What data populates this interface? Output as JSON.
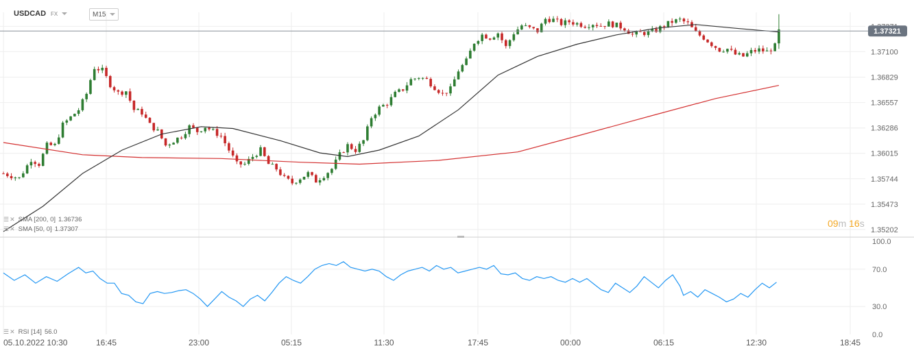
{
  "header": {
    "symbol": "USDCAD",
    "market": "FX",
    "timeframe": "M15"
  },
  "indicators": {
    "sma200": {
      "label": "SMA [200, 0]",
      "value": "1.36736",
      "color": "#d32f2f"
    },
    "sma50": {
      "label": "SMA [50, 0]",
      "value": "1.37307",
      "color": "#333333"
    },
    "rsi": {
      "label": "RSI [14]",
      "value": "56.0",
      "color": "#2196f3"
    }
  },
  "price_label": {
    "value": "1.37321",
    "color": "#6b7480"
  },
  "timer": {
    "minutes": "09",
    "m": "m",
    "seconds": "16",
    "s": "s"
  },
  "colors": {
    "bull": "#2e7d32",
    "bear": "#c62828",
    "grid": "#eeeeee"
  },
  "chart_data": {
    "type": "candlestick",
    "symbol": "USDCAD",
    "interval": "M15",
    "price_axis_ticks": [
      "1.37371",
      "1.37100",
      "1.36829",
      "1.36557",
      "1.36286",
      "1.36015",
      "1.35744",
      "1.35473",
      "1.35202"
    ],
    "rsi_axis_ticks": [
      "100.0",
      "70.0",
      "30.0",
      "0.0"
    ],
    "time_axis_ticks": [
      "05.10.2022 10:30",
      "16:45",
      "23:00",
      "05:15",
      "11:30",
      "17:45",
      "00:00",
      "06:15",
      "12:30",
      "18:45"
    ],
    "ylim": [
      1.3515,
      1.3752
    ],
    "rsi_ylim": [
      0,
      100
    ],
    "current_price": 1.37321,
    "close_path": [
      [
        0,
        1.358
      ],
      [
        4,
        1.3575
      ],
      [
        7,
        1.3595
      ],
      [
        9,
        1.359
      ],
      [
        11,
        1.361
      ],
      [
        13,
        1.361
      ],
      [
        15,
        1.3632
      ],
      [
        17,
        1.364
      ],
      [
        19,
        1.3648
      ],
      [
        21,
        1.3665
      ],
      [
        22,
        1.368
      ],
      [
        23,
        1.3693
      ],
      [
        25,
        1.369
      ],
      [
        27,
        1.3675
      ],
      [
        29,
        1.3666
      ],
      [
        31,
        1.3668
      ],
      [
        33,
        1.3648
      ],
      [
        35,
        1.3645
      ],
      [
        37,
        1.3632
      ],
      [
        39,
        1.3625
      ],
      [
        41,
        1.361
      ],
      [
        43,
        1.3615
      ],
      [
        45,
        1.362
      ],
      [
        47,
        1.363
      ],
      [
        49,
        1.3625
      ],
      [
        51,
        1.363
      ],
      [
        53,
        1.3625
      ],
      [
        55,
        1.362
      ],
      [
        57,
        1.3605
      ],
      [
        59,
        1.359
      ],
      [
        61,
        1.359
      ],
      [
        63,
        1.3598
      ],
      [
        65,
        1.3605
      ],
      [
        67,
        1.359
      ],
      [
        69,
        1.3585
      ],
      [
        71,
        1.3575
      ],
      [
        73,
        1.357
      ],
      [
        75,
        1.3575
      ],
      [
        77,
        1.358
      ],
      [
        79,
        1.3572
      ],
      [
        81,
        1.3578
      ],
      [
        83,
        1.3585
      ],
      [
        85,
        1.36
      ],
      [
        87,
        1.361
      ],
      [
        89,
        1.3605
      ],
      [
        91,
        1.3615
      ],
      [
        93,
        1.364
      ],
      [
        95,
        1.365
      ],
      [
        97,
        1.3655
      ],
      [
        99,
        1.3665
      ],
      [
        101,
        1.367
      ],
      [
        103,
        1.368
      ],
      [
        105,
        1.3683
      ],
      [
        107,
        1.368
      ],
      [
        109,
        1.3672
      ],
      [
        111,
        1.3665
      ],
      [
        113,
        1.367
      ],
      [
        115,
        1.369
      ],
      [
        117,
        1.37
      ],
      [
        119,
        1.372
      ],
      [
        121,
        1.3728
      ],
      [
        123,
        1.3725
      ],
      [
        125,
        1.373
      ],
      [
        127,
        1.3715
      ],
      [
        129,
        1.373
      ],
      [
        131,
        1.3738
      ],
      [
        133,
        1.3735
      ],
      [
        135,
        1.3732
      ],
      [
        137,
        1.3745
      ],
      [
        139,
        1.3744
      ],
      [
        141,
        1.374
      ],
      [
        143,
        1.3742
      ],
      [
        145,
        1.374
      ],
      [
        147,
        1.3738
      ],
      [
        149,
        1.374
      ],
      [
        151,
        1.3738
      ],
      [
        153,
        1.374
      ],
      [
        155,
        1.3738
      ],
      [
        157,
        1.3735
      ],
      [
        159,
        1.3728
      ],
      [
        161,
        1.373
      ],
      [
        163,
        1.373
      ],
      [
        165,
        1.3733
      ],
      [
        167,
        1.3738
      ],
      [
        169,
        1.3742
      ],
      [
        171,
        1.3744
      ],
      [
        173,
        1.374
      ],
      [
        175,
        1.373
      ],
      [
        177,
        1.3725
      ],
      [
        179,
        1.3718
      ],
      [
        181,
        1.3712
      ],
      [
        183,
        1.3713
      ],
      [
        185,
        1.3707
      ],
      [
        187,
        1.3705
      ],
      [
        189,
        1.371
      ],
      [
        191,
        1.3712
      ],
      [
        193,
        1.371
      ],
      [
        195,
        1.3716
      ],
      [
        196,
        1.3732
      ]
    ],
    "sma200_path": [
      [
        0,
        1.3613
      ],
      [
        20,
        1.36
      ],
      [
        35,
        1.3597
      ],
      [
        55,
        1.3596
      ],
      [
        75,
        1.3592
      ],
      [
        90,
        1.359
      ],
      [
        110,
        1.3594
      ],
      [
        130,
        1.3603
      ],
      [
        145,
        1.362
      ],
      [
        165,
        1.3643
      ],
      [
        180,
        1.366
      ],
      [
        196,
        1.3674
      ]
    ],
    "sma50_path": [
      [
        0,
        1.3518
      ],
      [
        10,
        1.3545
      ],
      [
        20,
        1.358
      ],
      [
        30,
        1.3605
      ],
      [
        40,
        1.3622
      ],
      [
        50,
        1.363
      ],
      [
        58,
        1.3628
      ],
      [
        70,
        1.3615
      ],
      [
        80,
        1.3602
      ],
      [
        87,
        1.3598
      ],
      [
        95,
        1.3605
      ],
      [
        105,
        1.362
      ],
      [
        115,
        1.3648
      ],
      [
        125,
        1.3685
      ],
      [
        135,
        1.3705
      ],
      [
        145,
        1.3718
      ],
      [
        155,
        1.3728
      ],
      [
        165,
        1.3735
      ],
      [
        175,
        1.3739
      ],
      [
        185,
        1.3735
      ],
      [
        196,
        1.3731
      ]
    ],
    "rsi_path": [
      [
        0,
        66
      ],
      [
        3,
        58
      ],
      [
        6,
        64
      ],
      [
        9,
        55
      ],
      [
        12,
        62
      ],
      [
        15,
        57
      ],
      [
        18,
        65
      ],
      [
        21,
        72
      ],
      [
        23,
        66
      ],
      [
        25,
        68
      ],
      [
        27,
        60
      ],
      [
        29,
        55
      ],
      [
        31,
        55
      ],
      [
        33,
        44
      ],
      [
        35,
        42
      ],
      [
        37,
        35
      ],
      [
        39,
        33
      ],
      [
        41,
        44
      ],
      [
        43,
        46
      ],
      [
        45,
        44
      ],
      [
        47,
        45
      ],
      [
        49,
        47
      ],
      [
        51,
        48
      ],
      [
        53,
        44
      ],
      [
        55,
        38
      ],
      [
        57,
        30
      ],
      [
        59,
        38
      ],
      [
        61,
        46
      ],
      [
        63,
        40
      ],
      [
        65,
        36
      ],
      [
        67,
        30
      ],
      [
        69,
        38
      ],
      [
        71,
        42
      ],
      [
        73,
        36
      ],
      [
        75,
        45
      ],
      [
        77,
        55
      ],
      [
        79,
        62
      ],
      [
        81,
        58
      ],
      [
        83,
        55
      ],
      [
        85,
        62
      ],
      [
        87,
        70
      ],
      [
        89,
        74
      ],
      [
        91,
        76
      ],
      [
        93,
        74
      ],
      [
        95,
        78
      ],
      [
        97,
        72
      ],
      [
        99,
        70
      ],
      [
        101,
        68
      ],
      [
        103,
        70
      ],
      [
        105,
        68
      ],
      [
        107,
        62
      ],
      [
        109,
        58
      ],
      [
        111,
        64
      ],
      [
        113,
        68
      ],
      [
        115,
        70
      ],
      [
        117,
        72
      ],
      [
        119,
        68
      ],
      [
        121,
        74
      ],
      [
        123,
        70
      ],
      [
        125,
        72
      ],
      [
        127,
        66
      ],
      [
        129,
        68
      ],
      [
        131,
        70
      ],
      [
        133,
        72
      ],
      [
        135,
        70
      ],
      [
        137,
        74
      ],
      [
        139,
        65
      ],
      [
        141,
        64
      ],
      [
        143,
        66
      ],
      [
        145,
        60
      ],
      [
        147,
        58
      ],
      [
        149,
        62
      ],
      [
        151,
        60
      ],
      [
        153,
        62
      ],
      [
        155,
        58
      ],
      [
        157,
        56
      ],
      [
        159,
        60
      ],
      [
        161,
        56
      ],
      [
        163,
        60
      ],
      [
        165,
        54
      ],
      [
        167,
        48
      ],
      [
        169,
        45
      ],
      [
        171,
        55
      ],
      [
        173,
        50
      ],
      [
        175,
        45
      ],
      [
        177,
        52
      ],
      [
        179,
        62
      ],
      [
        181,
        56
      ],
      [
        183,
        50
      ],
      [
        185,
        58
      ],
      [
        187,
        64
      ],
      [
        189,
        52
      ],
      [
        190,
        42
      ],
      [
        192,
        46
      ],
      [
        194,
        40
      ],
      [
        196,
        48
      ],
      [
        198,
        44
      ],
      [
        200,
        40
      ],
      [
        202,
        35
      ],
      [
        204,
        38
      ],
      [
        206,
        44
      ],
      [
        208,
        40
      ],
      [
        210,
        48
      ],
      [
        212,
        55
      ],
      [
        214,
        50
      ],
      [
        216,
        56
      ]
    ],
    "x_index_max": 220
  }
}
